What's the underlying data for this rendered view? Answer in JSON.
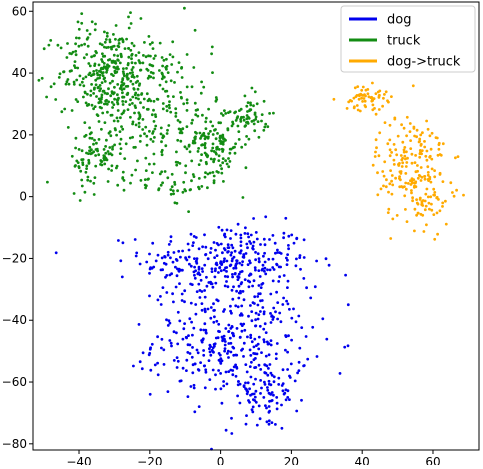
{
  "chart_data": {
    "type": "scatter",
    "title": "",
    "xlabel": "",
    "ylabel": "",
    "xlim": [
      -53,
      73
    ],
    "ylim": [
      -82,
      63
    ],
    "x_ticks": [
      -40,
      -20,
      0,
      20,
      40,
      60
    ],
    "y_ticks": [
      60,
      40,
      20,
      0,
      -20,
      -40,
      -60,
      -80
    ],
    "x_tick_labels": [
      "−40",
      "−20",
      "0",
      "20",
      "40",
      "60"
    ],
    "y_tick_labels": [
      "60",
      "40",
      "20",
      "0",
      "−20",
      "−40",
      "−60",
      "−80"
    ],
    "grid": false,
    "legend_position": "top-right",
    "series": [
      {
        "name": "dog",
        "color": "#0000ee",
        "clusters": [
          {
            "cx": 2,
            "cy": -21,
            "sx": 12,
            "sy": 6,
            "n": 320
          },
          {
            "cx": 3,
            "cy": -47,
            "sx": 11,
            "sy": 9,
            "n": 360
          },
          {
            "cx": 12,
            "cy": -64,
            "sx": 5,
            "sy": 6,
            "n": 90
          }
        ]
      },
      {
        "name": "truck",
        "color": "#138c13",
        "clusters": [
          {
            "cx": -32,
            "cy": 40,
            "sx": 7,
            "sy": 8,
            "n": 300
          },
          {
            "cx": -20,
            "cy": 30,
            "sx": 9,
            "sy": 12,
            "n": 260
          },
          {
            "cx": -2,
            "cy": 17,
            "sx": 4,
            "sy": 6,
            "n": 140
          },
          {
            "cx": 8,
            "cy": 26,
            "sx": 3,
            "sy": 3,
            "n": 60
          },
          {
            "cx": -35,
            "cy": 12,
            "sx": 4,
            "sy": 5,
            "n": 90
          },
          {
            "cx": -12,
            "cy": 5,
            "sx": 5,
            "sy": 4,
            "n": 40
          }
        ]
      },
      {
        "name": "dog->truck",
        "color": "#ffaa00",
        "clusters": [
          {
            "cx": 41,
            "cy": 32,
            "sx": 3,
            "sy": 2,
            "n": 60
          },
          {
            "cx": 54,
            "cy": 10,
            "sx": 5,
            "sy": 9,
            "n": 200
          },
          {
            "cx": 60,
            "cy": -3,
            "sx": 3,
            "sy": 3,
            "n": 30
          }
        ]
      }
    ]
  }
}
